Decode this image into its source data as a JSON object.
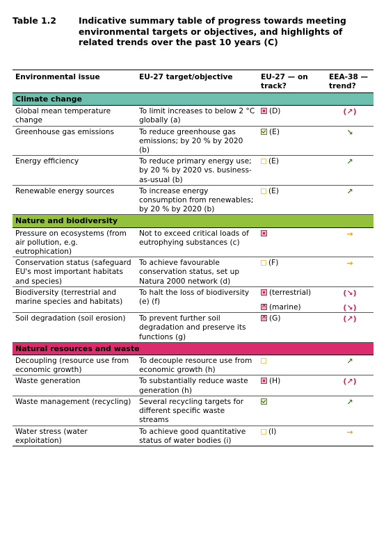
{
  "caption": {
    "number": "Table 1.2",
    "text": "Indicative summary table of progress towards meeting environmental targets or objectives, and highlights of related trends over the past 10 years (C)"
  },
  "headers": {
    "issue": "Environmental issue",
    "target": "EU-27 target/objective",
    "on_track": "EU-27 — on track?",
    "trend": "EEA-38 — trend?"
  },
  "sections": [
    {
      "name": "Climate change",
      "rows": [
        {
          "issue": "Global mean temperature change",
          "target": "To limit increases to below 2 °C globally (a)",
          "status": [
            {
              "icon": "red",
              "note": "(D)"
            }
          ],
          "trend": [
            {
              "arrow": "↗",
              "paren": true,
              "color": "pink"
            }
          ]
        },
        {
          "issue": "Greenhouse gas emissions",
          "target": "To reduce greenhouse gas emissions; by 20 % by 2020 (b)",
          "status": [
            {
              "icon": "green",
              "note": "(E)"
            }
          ],
          "trend": [
            {
              "arrow": "↘",
              "paren": false,
              "color": "green"
            }
          ]
        },
        {
          "issue": "Energy efficiency",
          "target": "To reduce primary energy use; by 20 % by 2020 vs. business-as-usual (b)",
          "status": [
            {
              "icon": "yellow",
              "note": "(E)"
            }
          ],
          "trend": [
            {
              "arrow": "↗",
              "paren": false,
              "color": "green"
            }
          ]
        },
        {
          "issue": "Renewable energy sources",
          "target": "To increase energy consumption from renewables; by 20 % by 2020 (b)",
          "status": [
            {
              "icon": "yellow",
              "note": "(E)"
            }
          ],
          "trend": [
            {
              "arrow": "↗",
              "paren": false,
              "color": "green"
            }
          ]
        }
      ]
    },
    {
      "name": "Nature and biodiversity",
      "rows": [
        {
          "issue": "Pressure on ecosystems (from air pollution, e.g. eutrophication)",
          "target": "Not to exceed critical loads of eutrophying substances (c)",
          "status": [
            {
              "icon": "red",
              "note": ""
            }
          ],
          "trend": [
            {
              "arrow": "→",
              "paren": false,
              "color": "orange"
            }
          ]
        },
        {
          "issue": "Conservation status (safeguard EU's most important habitats and species)",
          "target": "To achieve favourable conservation status, set up Natura 2000 network (d)",
          "status": [
            {
              "icon": "yellow",
              "note": "(F)"
            }
          ],
          "trend": [
            {
              "arrow": "→",
              "paren": false,
              "color": "orange"
            }
          ]
        },
        {
          "issue": "Biodiversity (terrestrial and marine species and habitats)",
          "target": "To halt the loss of biodiversity (e) (f)",
          "status": [
            {
              "icon": "red",
              "note": "(terrestrial)"
            },
            {
              "icon": "xr",
              "note": "(marine)"
            }
          ],
          "trend": [
            {
              "arrow": "↘",
              "paren": true,
              "color": "pink"
            },
            {
              "arrow": "↘",
              "paren": true,
              "color": "pink"
            }
          ]
        },
        {
          "issue": "Soil degradation (soil erosion)",
          "target": "To prevent further soil degradation and preserve its functions (g)",
          "status": [
            {
              "icon": "xr",
              "note": "(G)"
            }
          ],
          "trend": [
            {
              "arrow": "↗",
              "paren": true,
              "color": "pink"
            }
          ]
        }
      ]
    },
    {
      "name": "Natural resources and waste",
      "rows": [
        {
          "issue": "Decoupling (resource use from economic growth)",
          "target": "To decouple resource use from economic growth (h)",
          "status": [
            {
              "icon": "yellow",
              "note": ""
            }
          ],
          "trend": [
            {
              "arrow": "↗",
              "paren": false,
              "color": "green"
            }
          ]
        },
        {
          "issue": "Waste generation",
          "target": "To substantially reduce waste generation (h)",
          "status": [
            {
              "icon": "red",
              "note": "(H)"
            }
          ],
          "trend": [
            {
              "arrow": "↗",
              "paren": true,
              "color": "pink"
            }
          ]
        },
        {
          "issue": "Waste management (recycling)",
          "target": "Several recycling targets for different specific waste streams",
          "status": [
            {
              "icon": "green",
              "note": ""
            }
          ],
          "trend": [
            {
              "arrow": "↗",
              "paren": false,
              "color": "green"
            }
          ]
        },
        {
          "issue": "Water stress (water exploitation)",
          "target": "To achieve good quantitative status of water bodies (i)",
          "status": [
            {
              "icon": "yellow",
              "note": "(I)"
            }
          ],
          "trend": [
            {
              "arrow": "→",
              "paren": false,
              "color": "orange"
            }
          ]
        }
      ]
    }
  ]
}
